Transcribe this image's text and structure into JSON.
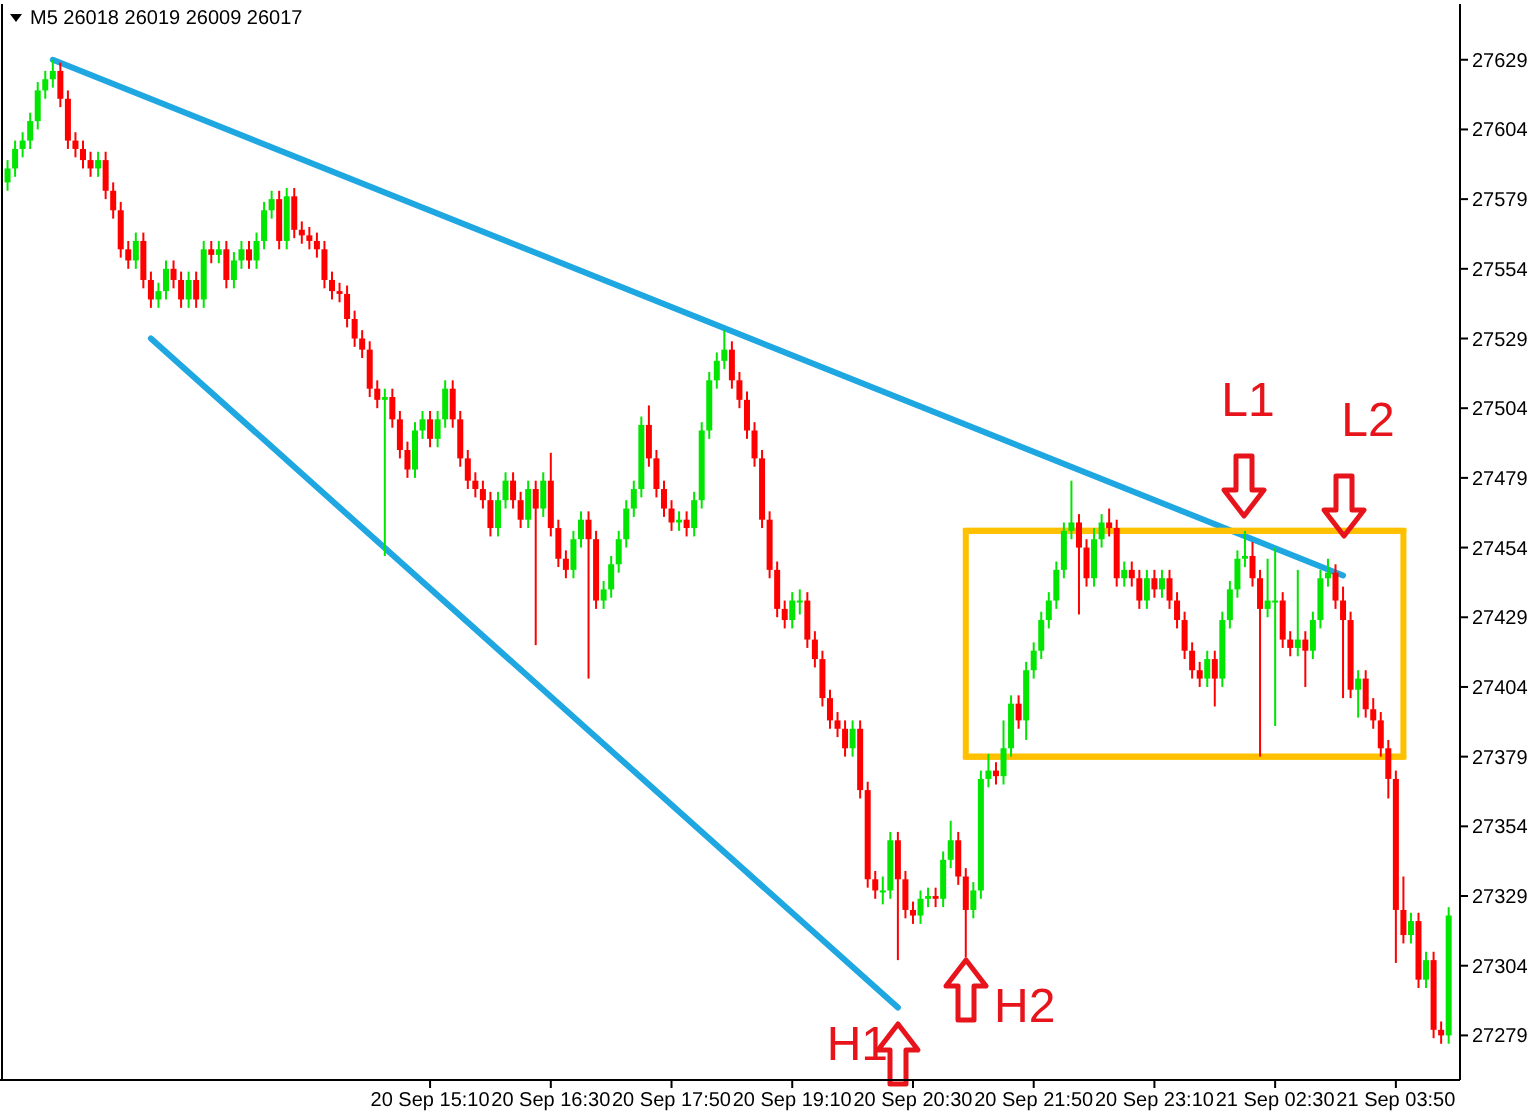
{
  "chart_data": {
    "type": "candlestick",
    "title": "M5 26018 26019 26009 26017",
    "ylim": [
      27263,
      27649
    ],
    "categories": [
      null,
      null,
      null,
      null,
      null,
      null,
      null,
      null,
      null,
      null,
      null,
      null,
      null,
      null,
      null,
      null,
      null,
      null,
      null,
      null,
      null,
      null,
      null,
      null,
      null,
      null,
      null,
      null,
      null,
      null,
      null,
      null,
      null,
      null,
      null,
      null,
      null,
      null,
      null,
      null,
      null,
      null,
      null,
      null,
      null,
      null,
      null,
      null,
      null,
      null,
      null,
      null,
      null,
      null,
      null,
      null,
      "20 Sep 15:10",
      null,
      null,
      null,
      null,
      null,
      null,
      null,
      null,
      null,
      null,
      null,
      null,
      null,
      null,
      null,
      "20 Sep 16:30",
      null,
      null,
      null,
      null,
      null,
      null,
      null,
      null,
      null,
      null,
      null,
      null,
      null,
      null,
      null,
      "20 Sep 17:50",
      null,
      null,
      null,
      null,
      null,
      null,
      null,
      null,
      null,
      null,
      null,
      null,
      null,
      null,
      null,
      "20 Sep 19:10",
      null,
      null,
      null,
      null,
      null,
      null,
      null,
      null,
      null,
      null,
      null,
      null,
      null,
      null,
      null,
      "20 Sep 20:30",
      null,
      null,
      null,
      null,
      null,
      null,
      null,
      null,
      null,
      null,
      null,
      null,
      null,
      null,
      null,
      "20 Sep 21:50",
      null,
      null,
      null,
      null,
      null,
      null,
      null,
      null,
      null,
      null,
      null,
      null,
      null,
      null,
      null,
      "20 Sep 23:10",
      null,
      null,
      null,
      null,
      null,
      null,
      null,
      null,
      null,
      null,
      null,
      null,
      null,
      null,
      null,
      "21 Sep 02:30",
      null,
      null,
      null,
      null,
      null,
      null,
      null,
      null,
      null,
      null,
      null,
      null,
      null,
      null,
      null,
      "21 Sep 03:50",
      null,
      null,
      null,
      null,
      null,
      null,
      null
    ],
    "yticks": [
      27279,
      27304,
      27329,
      27354,
      27379,
      27404,
      27429,
      27454,
      27479,
      27504,
      27529,
      27554,
      27579,
      27604,
      27629
    ],
    "ohlc": [
      [
        27585,
        27593,
        27582,
        27590
      ],
      [
        27590,
        27600,
        27587,
        27597
      ],
      [
        27597,
        27603,
        27594,
        27600
      ],
      [
        27600,
        27610,
        27597,
        27607
      ],
      [
        27607,
        27621,
        27604,
        27618
      ],
      [
        27618,
        27625,
        27615,
        27622
      ],
      [
        27622,
        27629,
        27619,
        27625
      ],
      [
        27625,
        27628,
        27612,
        27615
      ],
      [
        27615,
        27618,
        27597,
        27600
      ],
      [
        27600,
        27603,
        27594,
        27597
      ],
      [
        27597,
        27600,
        27590,
        27593
      ],
      [
        27593,
        27596,
        27587,
        27590
      ],
      [
        27590,
        27596,
        27587,
        27593
      ],
      [
        27593,
        27596,
        27579,
        27582
      ],
      [
        27582,
        27585,
        27572,
        27575
      ],
      [
        27575,
        27578,
        27558,
        27561
      ],
      [
        27561,
        27564,
        27554,
        27557
      ],
      [
        27557,
        27567,
        27554,
        27564
      ],
      [
        27564,
        27567,
        27547,
        27550
      ],
      [
        27550,
        27553,
        27540,
        27543
      ],
      [
        27543,
        27549,
        27540,
        27546
      ],
      [
        27546,
        27557,
        27543,
        27554
      ],
      [
        27554,
        27557,
        27547,
        27550
      ],
      [
        27550,
        27553,
        27540,
        27543
      ],
      [
        27543,
        27553,
        27540,
        27550
      ],
      [
        27550,
        27553,
        27540,
        27543
      ],
      [
        27543,
        27564,
        27540,
        27561
      ],
      [
        27561,
        27564,
        27556,
        27559
      ],
      [
        27559,
        27564,
        27556,
        27561
      ],
      [
        27561,
        27564,
        27547,
        27550
      ],
      [
        27550,
        27560,
        27547,
        27557
      ],
      [
        27557,
        27564,
        27554,
        27561
      ],
      [
        27561,
        27564,
        27554,
        27557
      ],
      [
        27557,
        27567,
        27554,
        27564
      ],
      [
        27564,
        27578,
        27561,
        27575
      ],
      [
        27575,
        27582,
        27572,
        27579
      ],
      [
        27579,
        27582,
        27561,
        27564
      ],
      [
        27564,
        27583,
        27561,
        27580
      ],
      [
        27580,
        27583,
        27565,
        27568
      ],
      [
        27568,
        27571,
        27563,
        27566
      ],
      [
        27566,
        27569,
        27561,
        27564
      ],
      [
        27564,
        27567,
        27558,
        27561
      ],
      [
        27561,
        27564,
        27547,
        27550
      ],
      [
        27550,
        27553,
        27543,
        27546
      ],
      [
        27546,
        27549,
        27542,
        27545
      ],
      [
        27545,
        27548,
        27533,
        27536
      ],
      [
        27536,
        27539,
        27526,
        27529
      ],
      [
        27529,
        27532,
        27522,
        27525
      ],
      [
        27525,
        27528,
        27508,
        27511
      ],
      [
        27511,
        27514,
        27504,
        27507
      ],
      [
        27507,
        27511,
        27451,
        27508
      ],
      [
        27508,
        27511,
        27497,
        27500
      ],
      [
        27500,
        27503,
        27486,
        27489
      ],
      [
        27489,
        27492,
        27479,
        27482
      ],
      [
        27482,
        27499,
        27479,
        27496
      ],
      [
        27496,
        27503,
        27493,
        27500
      ],
      [
        27500,
        27503,
        27490,
        27493
      ],
      [
        27493,
        27503,
        27490,
        27500
      ],
      [
        27500,
        27514,
        27497,
        27511
      ],
      [
        27511,
        27514,
        27497,
        27500
      ],
      [
        27500,
        27503,
        27483,
        27486
      ],
      [
        27486,
        27489,
        27475,
        27478
      ],
      [
        27478,
        27481,
        27472,
        27475
      ],
      [
        27475,
        27478,
        27468,
        27471
      ],
      [
        27471,
        27474,
        27458,
        27461
      ],
      [
        27461,
        27474,
        27458,
        27471
      ],
      [
        27471,
        27481,
        27468,
        27478
      ],
      [
        27478,
        27481,
        27468,
        27471
      ],
      [
        27471,
        27474,
        27461,
        27464
      ],
      [
        27464,
        27478,
        27461,
        27475
      ],
      [
        27475,
        27478,
        27419,
        27468
      ],
      [
        27468,
        27481,
        27465,
        27478
      ],
      [
        27478,
        27488,
        27458,
        27461
      ],
      [
        27461,
        27464,
        27447,
        27450
      ],
      [
        27450,
        27453,
        27443,
        27446
      ],
      [
        27446,
        27460,
        27443,
        27457
      ],
      [
        27457,
        27467,
        27454,
        27464
      ],
      [
        27464,
        27467,
        27407,
        27457
      ],
      [
        27457,
        27460,
        27432,
        27435
      ],
      [
        27435,
        27442,
        27432,
        27439
      ],
      [
        27439,
        27451,
        27436,
        27448
      ],
      [
        27448,
        27460,
        27445,
        27457
      ],
      [
        27457,
        27471,
        27454,
        27468
      ],
      [
        27468,
        27478,
        27465,
        27475
      ],
      [
        27475,
        27501,
        27472,
        27498
      ],
      [
        27498,
        27505,
        27483,
        27486
      ],
      [
        27486,
        27489,
        27472,
        27475
      ],
      [
        27475,
        27478,
        27465,
        27468
      ],
      [
        27468,
        27471,
        27460,
        27463
      ],
      [
        27463,
        27467,
        27460,
        27464
      ],
      [
        27464,
        27467,
        27458,
        27461
      ],
      [
        27461,
        27474,
        27458,
        27471
      ],
      [
        27471,
        27499,
        27468,
        27496
      ],
      [
        27496,
        27517,
        27493,
        27514
      ],
      [
        27514,
        27524,
        27511,
        27521
      ],
      [
        27521,
        27532,
        27518,
        27525
      ],
      [
        27525,
        27528,
        27511,
        27514
      ],
      [
        27514,
        27517,
        27504,
        27507
      ],
      [
        27507,
        27510,
        27493,
        27496
      ],
      [
        27496,
        27499,
        27483,
        27486
      ],
      [
        27486,
        27489,
        27461,
        27464
      ],
      [
        27464,
        27467,
        27443,
        27446
      ],
      [
        27446,
        27449,
        27429,
        27432
      ],
      [
        27432,
        27435,
        27425,
        27428
      ],
      [
        27428,
        27438,
        27425,
        27435
      ],
      [
        27435,
        27439,
        27430,
        27435
      ],
      [
        27435,
        27438,
        27418,
        27421
      ],
      [
        27421,
        27424,
        27411,
        27414
      ],
      [
        27414,
        27417,
        27397,
        27400
      ],
      [
        27400,
        27403,
        27389,
        27392
      ],
      [
        27392,
        27395,
        27386,
        27389
      ],
      [
        27389,
        27392,
        27379,
        27382
      ],
      [
        27382,
        27392,
        27379,
        27389
      ],
      [
        27389,
        27392,
        27364,
        27367
      ],
      [
        27367,
        27370,
        27332,
        27335
      ],
      [
        27335,
        27338,
        27328,
        27331
      ],
      [
        27331,
        27336,
        27326,
        27331
      ],
      [
        27331,
        27352,
        27328,
        27349
      ],
      [
        27349,
        27352,
        27306,
        27335
      ],
      [
        27335,
        27338,
        27321,
        27324
      ],
      [
        27324,
        27327,
        27319,
        27322
      ],
      [
        27322,
        27331,
        27319,
        27328
      ],
      [
        27328,
        27332,
        27325,
        27329
      ],
      [
        27329,
        27332,
        27325,
        27328
      ],
      [
        27328,
        27345,
        27325,
        27342
      ],
      [
        27342,
        27356,
        27339,
        27349
      ],
      [
        27349,
        27352,
        27333,
        27336
      ],
      [
        27336,
        27339,
        27307,
        27324
      ],
      [
        27324,
        27334,
        27321,
        27331
      ],
      [
        27331,
        27374,
        27328,
        27371
      ],
      [
        27371,
        27380,
        27368,
        27374
      ],
      [
        27374,
        27377,
        27369,
        27372
      ],
      [
        27372,
        27392,
        27369,
        27382
      ],
      [
        27382,
        27401,
        27379,
        27398
      ],
      [
        27398,
        27401,
        27389,
        27392
      ],
      [
        27392,
        27413,
        27385,
        27410
      ],
      [
        27410,
        27420,
        27407,
        27417
      ],
      [
        27417,
        27431,
        27414,
        27428
      ],
      [
        27428,
        27438,
        27425,
        27435
      ],
      [
        27435,
        27449,
        27432,
        27446
      ],
      [
        27446,
        27463,
        27443,
        27460
      ],
      [
        27460,
        27478,
        27457,
        27463
      ],
      [
        27463,
        27466,
        27430,
        27454
      ],
      [
        27454,
        27457,
        27440,
        27443
      ],
      [
        27443,
        27461,
        27440,
        27457
      ],
      [
        27457,
        27466,
        27454,
        27463
      ],
      [
        27463,
        27468,
        27458,
        27461
      ],
      [
        27461,
        27464,
        27440,
        27443
      ],
      [
        27443,
        27449,
        27440,
        27446
      ],
      [
        27446,
        27449,
        27440,
        27443
      ],
      [
        27443,
        27446,
        27432,
        27435
      ],
      [
        27435,
        27446,
        27432,
        27443
      ],
      [
        27443,
        27446,
        27436,
        27439
      ],
      [
        27439,
        27446,
        27436,
        27443
      ],
      [
        27443,
        27446,
        27432,
        27435
      ],
      [
        27435,
        27438,
        27425,
        27428
      ],
      [
        27428,
        27431,
        27414,
        27417
      ],
      [
        27417,
        27420,
        27407,
        27410
      ],
      [
        27410,
        27413,
        27404,
        27407
      ],
      [
        27407,
        27417,
        27404,
        27414
      ],
      [
        27414,
        27417,
        27397,
        27407
      ],
      [
        27407,
        27431,
        27404,
        27428
      ],
      [
        27428,
        27442,
        27425,
        27439
      ],
      [
        27439,
        27453,
        27436,
        27450
      ],
      [
        27450,
        27460,
        27447,
        27451
      ],
      [
        27451,
        27456,
        27440,
        27443
      ],
      [
        27443,
        27446,
        27379,
        27432
      ],
      [
        27432,
        27450,
        27429,
        27435
      ],
      [
        27435,
        27454,
        27390,
        27435
      ],
      [
        27435,
        27438,
        27418,
        27421
      ],
      [
        27421,
        27424,
        27415,
        27418
      ],
      [
        27418,
        27446,
        27415,
        27421
      ],
      [
        27421,
        27424,
        27404,
        27417
      ],
      [
        27417,
        27431,
        27414,
        27428
      ],
      [
        27428,
        27446,
        27425,
        27443
      ],
      [
        27443,
        27450,
        27440,
        27445
      ],
      [
        27445,
        27448,
        27432,
        27435
      ],
      [
        27435,
        27440,
        27400,
        27428
      ],
      [
        27428,
        27431,
        27400,
        27403
      ],
      [
        27403,
        27410,
        27393,
        27407
      ],
      [
        27407,
        27410,
        27393,
        27396
      ],
      [
        27396,
        27400,
        27389,
        27392
      ],
      [
        27392,
        27395,
        27379,
        27382
      ],
      [
        27382,
        27385,
        27364,
        27371
      ],
      [
        27371,
        27374,
        27305,
        27324
      ],
      [
        27324,
        27336,
        27312,
        27315
      ],
      [
        27315,
        27323,
        27312,
        27320
      ],
      [
        27320,
        27323,
        27296,
        27299
      ],
      [
        27299,
        27309,
        27296,
        27306
      ],
      [
        27306,
        27309,
        27278,
        27281
      ],
      [
        27281,
        27284,
        27276,
        27279
      ],
      [
        27279,
        27325,
        27276,
        27322
      ]
    ],
    "series": [
      {
        "type": "line",
        "color": "#1ea7e1",
        "values": [
          null,
          null,
          null,
          null,
          null,
          null,
          27629,
          null,
          null,
          null,
          null,
          null,
          null,
          null,
          null,
          null,
          null,
          null,
          null,
          null,
          null,
          null,
          null,
          null,
          null,
          null,
          null,
          null,
          null,
          null,
          null,
          null,
          null,
          null,
          null,
          null,
          null,
          null,
          null,
          null,
          null,
          null,
          null,
          null,
          null,
          null,
          null,
          null,
          null,
          null,
          null,
          null,
          null,
          null,
          null,
          null,
          null,
          null,
          null,
          null,
          null,
          null,
          null,
          null,
          null,
          null,
          null,
          null,
          null,
          null,
          null,
          null,
          null,
          null,
          null,
          null,
          null,
          null,
          null,
          null,
          null,
          null,
          null,
          null,
          null,
          null,
          null,
          null,
          null,
          null,
          null,
          null,
          null,
          null,
          null,
          null,
          null,
          null,
          null,
          null,
          null,
          null,
          null,
          null,
          null,
          null,
          null,
          null,
          null,
          null,
          null,
          null,
          null,
          null,
          null,
          null,
          null,
          null,
          null,
          null,
          null,
          null,
          null,
          null,
          null,
          null,
          null,
          null,
          null,
          null,
          null,
          null,
          null,
          null,
          null,
          null,
          null,
          null,
          null,
          null,
          null,
          null,
          null,
          null,
          null,
          null,
          null,
          null,
          null,
          null,
          null,
          null,
          null,
          null,
          null,
          null,
          null,
          null,
          null,
          null,
          null,
          null,
          null,
          null,
          null,
          null,
          null,
          null,
          null,
          null,
          null,
          null,
          null,
          null,
          null,
          null,
          null,
          27444,
          null,
          null,
          null,
          null,
          null,
          null,
          null,
          null,
          null,
          null,
          null,
          null,
          null,
          null
        ]
      },
      {
        "type": "line",
        "color": "#1ea7e1",
        "values": [
          null,
          null,
          null,
          null,
          null,
          null,
          null,
          null,
          null,
          null,
          null,
          null,
          null,
          null,
          null,
          null,
          null,
          null,
          null,
          27529,
          null,
          null,
          null,
          null,
          null,
          null,
          null,
          null,
          null,
          null,
          null,
          null,
          null,
          null,
          null,
          null,
          null,
          null,
          null,
          null,
          null,
          null,
          null,
          null,
          null,
          null,
          null,
          null,
          null,
          null,
          null,
          null,
          null,
          null,
          null,
          null,
          null,
          null,
          null,
          null,
          null,
          null,
          null,
          null,
          null,
          null,
          null,
          null,
          null,
          null,
          null,
          null,
          null,
          null,
          null,
          null,
          null,
          null,
          null,
          null,
          null,
          null,
          null,
          null,
          null,
          null,
          null,
          null,
          null,
          null,
          null,
          null,
          null,
          null,
          null,
          null,
          null,
          null,
          null,
          null,
          null,
          null,
          null,
          null,
          null,
          null,
          null,
          null,
          null,
          null,
          null,
          null,
          null,
          null,
          null,
          null,
          null,
          null,
          27289,
          null,
          null,
          null,
          null,
          null,
          null,
          null,
          null,
          null,
          null,
          null,
          null,
          null,
          null,
          null,
          null,
          null,
          null,
          null,
          null,
          null,
          null,
          null,
          null,
          null,
          null,
          null,
          null,
          null,
          null,
          null,
          null,
          null,
          null,
          null,
          null,
          null,
          null,
          null,
          null,
          null,
          null,
          null,
          null,
          null,
          null,
          null,
          null,
          null,
          null,
          null,
          null,
          null,
          null,
          null,
          null,
          null,
          null,
          null,
          null,
          null,
          null,
          null,
          null,
          null,
          null,
          null,
          null,
          null,
          null,
          null,
          null,
          null
        ]
      },
      {
        "type": "line",
        "color": "#ffc000",
        "values": [
          null,
          null,
          null,
          null,
          null,
          null,
          null,
          null,
          null,
          null,
          null,
          null,
          null,
          null,
          null,
          null,
          null,
          null,
          null,
          null,
          null,
          null,
          null,
          null,
          null,
          null,
          null,
          null,
          null,
          null,
          null,
          null,
          null,
          null,
          null,
          null,
          null,
          null,
          null,
          null,
          null,
          null,
          null,
          null,
          null,
          null,
          null,
          null,
          null,
          null,
          null,
          null,
          null,
          null,
          null,
          null,
          null,
          null,
          null,
          null,
          null,
          null,
          null,
          null,
          null,
          null,
          null,
          null,
          null,
          null,
          null,
          null,
          null,
          null,
          null,
          null,
          null,
          null,
          null,
          null,
          null,
          null,
          null,
          null,
          null,
          null,
          null,
          null,
          null,
          null,
          null,
          null,
          null,
          null,
          null,
          null,
          null,
          null,
          null,
          null,
          null,
          null,
          null,
          null,
          null,
          null,
          null,
          null,
          null,
          null,
          null,
          null,
          null,
          null,
          null,
          null,
          null,
          null,
          null,
          null,
          null,
          null,
          null,
          null,
          null,
          null,
          null,
          27460,
          null,
          null,
          null,
          null,
          null,
          null,
          null,
          null,
          null,
          null,
          null,
          null,
          null,
          null,
          null,
          null,
          null,
          null,
          null,
          null,
          null,
          null,
          null,
          null,
          null,
          null,
          null,
          null,
          null,
          null,
          null,
          null,
          null,
          null,
          null,
          null,
          null,
          null,
          null,
          null,
          null,
          null,
          null,
          null,
          null,
          null,
          null,
          null,
          null,
          null,
          null,
          null,
          null,
          null,
          null,
          null,
          null,
          27460,
          null,
          null,
          null,
          null,
          null,
          null
        ]
      },
      {
        "type": "line",
        "color": "#ffc000",
        "values": [
          null,
          null,
          null,
          null,
          null,
          null,
          null,
          null,
          null,
          null,
          null,
          null,
          null,
          null,
          null,
          null,
          null,
          null,
          null,
          null,
          null,
          null,
          null,
          null,
          null,
          null,
          null,
          null,
          null,
          null,
          null,
          null,
          null,
          null,
          null,
          null,
          null,
          null,
          null,
          null,
          null,
          null,
          null,
          null,
          null,
          null,
          null,
          null,
          null,
          null,
          null,
          null,
          null,
          null,
          null,
          null,
          null,
          null,
          null,
          null,
          null,
          null,
          null,
          null,
          null,
          null,
          null,
          null,
          null,
          null,
          null,
          null,
          null,
          null,
          null,
          null,
          null,
          null,
          null,
          null,
          null,
          null,
          null,
          null,
          null,
          null,
          null,
          null,
          null,
          null,
          null,
          null,
          null,
          null,
          null,
          null,
          null,
          null,
          null,
          null,
          null,
          null,
          null,
          null,
          null,
          null,
          null,
          null,
          null,
          null,
          null,
          null,
          null,
          null,
          null,
          null,
          null,
          null,
          null,
          null,
          null,
          null,
          null,
          null,
          null,
          null,
          null,
          27379,
          null,
          null,
          null,
          null,
          null,
          null,
          null,
          null,
          null,
          null,
          null,
          null,
          null,
          null,
          null,
          null,
          null,
          null,
          null,
          null,
          null,
          null,
          null,
          null,
          null,
          null,
          null,
          null,
          null,
          null,
          null,
          null,
          null,
          null,
          null,
          null,
          null,
          null,
          null,
          null,
          null,
          null,
          null,
          null,
          null,
          null,
          null,
          null,
          null,
          null,
          null,
          null,
          null,
          null,
          null,
          null,
          null,
          27379,
          null,
          null,
          null,
          null,
          null,
          null
        ]
      }
    ],
    "annotations": [
      "H1",
      "H2",
      "L1",
      "L2"
    ]
  }
}
